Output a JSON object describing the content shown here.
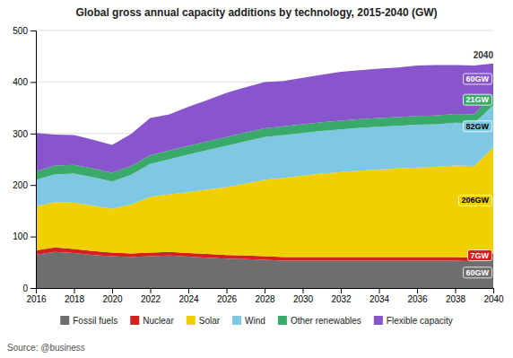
{
  "chart_data": {
    "type": "area",
    "stacked": true,
    "title": "Global gross annual capacity additions by technology, 2015-2040 (GW)",
    "x": [
      2016,
      2017,
      2018,
      2019,
      2020,
      2021,
      2022,
      2023,
      2024,
      2025,
      2026,
      2027,
      2028,
      2029,
      2030,
      2031,
      2032,
      2033,
      2034,
      2035,
      2036,
      2037,
      2038,
      2039,
      2040
    ],
    "xlim": [
      2016,
      2040
    ],
    "xticks": [
      2016,
      2018,
      2020,
      2022,
      2024,
      2026,
      2028,
      2030,
      2032,
      2034,
      2036,
      2038,
      2040
    ],
    "ylim": [
      0,
      500
    ],
    "yticks": [
      0,
      100,
      200,
      300,
      400,
      500
    ],
    "grid": true,
    "legend": "bottom",
    "data_labels": true,
    "series": [
      {
        "name": "Fossil fuels",
        "color": "#6e6e6e",
        "values": [
          65,
          70,
          68,
          64,
          62,
          60,
          62,
          63,
          61,
          59,
          57,
          56,
          55,
          53,
          53,
          53,
          53,
          53,
          53,
          53,
          53,
          53,
          53,
          52,
          60
        ],
        "value_labels": [
          null,
          null,
          null,
          null,
          null,
          null,
          null,
          null,
          null,
          null,
          null,
          null,
          null,
          null,
          null,
          null,
          null,
          null,
          null,
          null,
          null,
          null,
          null,
          null,
          "60GW"
        ]
      },
      {
        "name": "Nuclear",
        "color": "#d42020",
        "values": [
          8,
          9,
          8,
          8,
          7,
          7,
          7,
          7,
          7,
          7,
          7,
          7,
          7,
          7,
          7,
          7,
          7,
          7,
          7,
          7,
          7,
          7,
          7,
          7,
          7
        ],
        "value_labels": [
          null,
          null,
          null,
          null,
          null,
          null,
          null,
          null,
          null,
          null,
          null,
          null,
          null,
          null,
          null,
          null,
          null,
          null,
          null,
          null,
          null,
          null,
          null,
          null,
          "7GW"
        ]
      },
      {
        "name": "Solar",
        "color": "#f0d000",
        "values": [
          85,
          88,
          90,
          88,
          85,
          95,
          108,
          112,
          118,
          125,
          132,
          140,
          148,
          154,
          158,
          162,
          165,
          168,
          170,
          172,
          174,
          175,
          178,
          178,
          206
        ],
        "value_labels": [
          null,
          null,
          null,
          null,
          null,
          null,
          null,
          null,
          null,
          null,
          null,
          null,
          null,
          null,
          null,
          null,
          null,
          null,
          null,
          null,
          null,
          null,
          null,
          null,
          "206GW"
        ]
      },
      {
        "name": "Wind",
        "color": "#7ec8e3",
        "values": [
          52,
          54,
          56,
          55,
          53,
          58,
          64,
          68,
          73,
          77,
          80,
          82,
          83,
          83,
          83,
          83,
          83,
          83,
          83,
          83,
          83,
          83,
          83,
          83,
          82
        ],
        "value_labels": [
          null,
          null,
          null,
          null,
          null,
          null,
          null,
          null,
          null,
          null,
          null,
          null,
          null,
          null,
          null,
          null,
          null,
          null,
          null,
          null,
          null,
          null,
          null,
          null,
          "82GW"
        ]
      },
      {
        "name": "Other renewables",
        "color": "#3aaa6a",
        "values": [
          16,
          17,
          17,
          17,
          17,
          17,
          17,
          17,
          17,
          17,
          17,
          17,
          17,
          17,
          17,
          17,
          17,
          17,
          17,
          17,
          17,
          17,
          17,
          17,
          21
        ],
        "value_labels": [
          null,
          null,
          null,
          null,
          null,
          null,
          null,
          null,
          null,
          null,
          null,
          null,
          null,
          null,
          null,
          null,
          null,
          null,
          null,
          null,
          null,
          null,
          null,
          null,
          "21GW"
        ]
      },
      {
        "name": "Flexible capacity",
        "color": "#8855cc",
        "values": [
          75,
          60,
          58,
          56,
          54,
          62,
          72,
          70,
          76,
          80,
          86,
          88,
          90,
          88,
          90,
          92,
          95,
          95,
          96,
          96,
          98,
          98,
          95,
          95,
          60
        ],
        "value_labels": [
          null,
          null,
          null,
          null,
          null,
          null,
          null,
          null,
          null,
          null,
          null,
          null,
          null,
          null,
          null,
          null,
          null,
          null,
          null,
          null,
          null,
          null,
          null,
          null,
          "60GW"
        ]
      }
    ],
    "annotations": [
      {
        "text": "2040",
        "x": 2040
      },
      {
        "text": "Source: @business"
      }
    ]
  }
}
